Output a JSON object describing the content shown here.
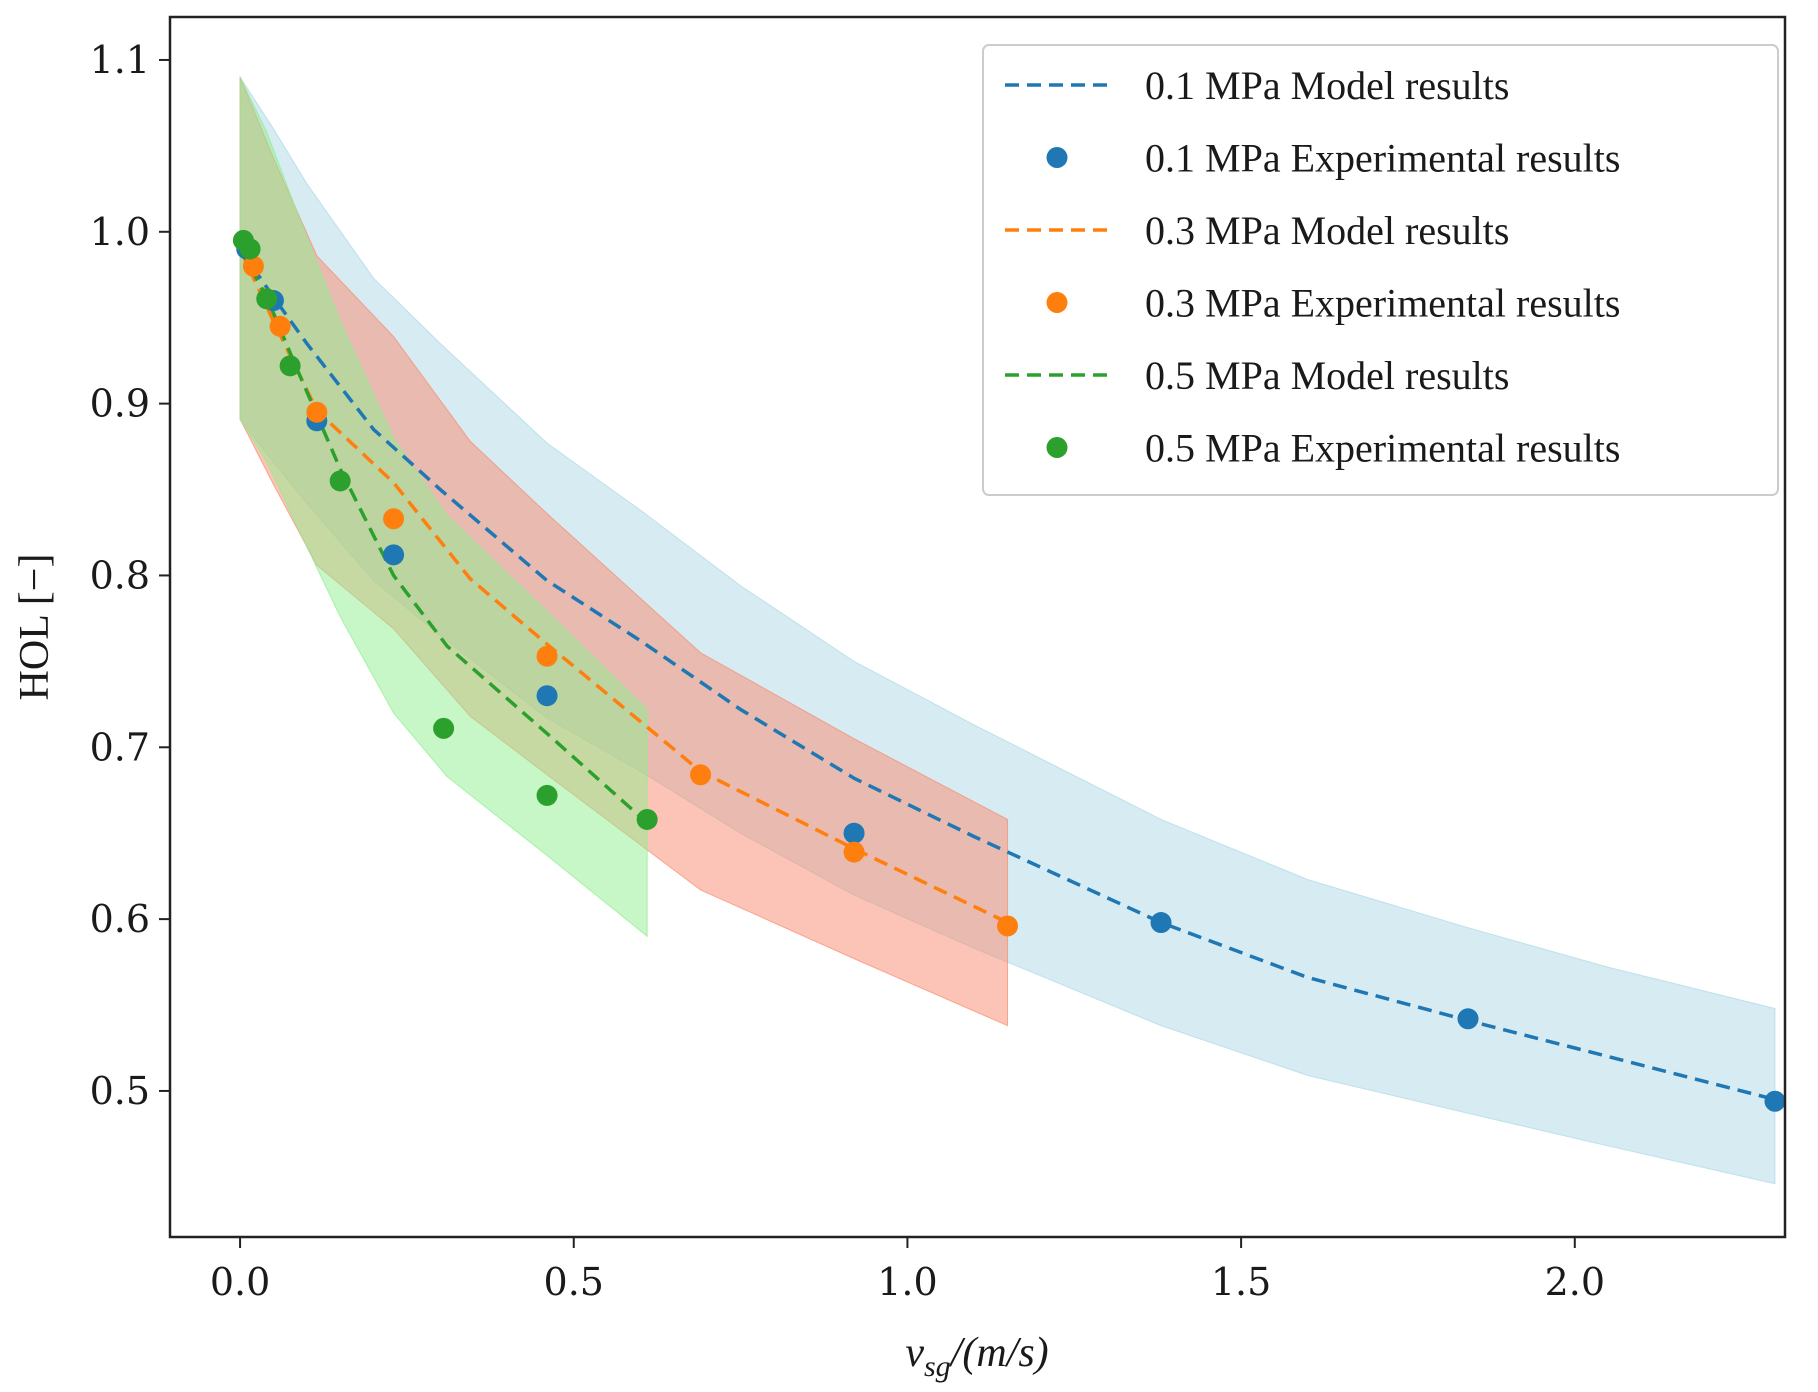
{
  "chart_data": {
    "type": "line",
    "title": "",
    "xlabel": "v_sg/(m/s)",
    "xlabel_parts": {
      "main": "v",
      "sub": "sg",
      "rest": "/(m/s)"
    },
    "ylabel": "HOL [−]",
    "xlim": [
      -0.105,
      2.315
    ],
    "ylim": [
      0.415,
      1.125
    ],
    "xticks": [
      0.0,
      0.5,
      1.0,
      1.5,
      2.0
    ],
    "xtick_labels": [
      "0.0",
      "0.5",
      "1.0",
      "1.5",
      "2.0"
    ],
    "yticks": [
      0.5,
      0.6,
      0.7,
      0.8,
      0.9,
      1.0,
      1.1
    ],
    "ytick_labels": [
      "0.5",
      "0.6",
      "0.7",
      "0.8",
      "0.9",
      "1.0",
      "1.1"
    ],
    "legend_position": "top-right",
    "series": [
      {
        "name": "0.1 MPa",
        "line_color": "#1f77b4",
        "band_color": "#add8e6",
        "model_label": "0.1 MPa Model results",
        "exp_label": "0.1 MPa Experimental results",
        "model": {
          "x": [
            0.0,
            0.05,
            0.1,
            0.2,
            0.3,
            0.46,
            0.6,
            0.75,
            0.92,
            1.1,
            1.38,
            1.6,
            1.84,
            2.05,
            2.3
          ],
          "y": [
            0.99,
            0.962,
            0.935,
            0.885,
            0.85,
            0.797,
            0.762,
            0.722,
            0.682,
            0.648,
            0.598,
            0.566,
            0.541,
            0.52,
            0.495
          ]
        },
        "band_upper": [
          1.09,
          1.06,
          1.028,
          0.973,
          0.935,
          0.877,
          0.838,
          0.794,
          0.75,
          0.713,
          0.658,
          0.623,
          0.595,
          0.572,
          0.548
        ],
        "band_lower": [
          0.891,
          0.866,
          0.842,
          0.797,
          0.765,
          0.717,
          0.686,
          0.65,
          0.614,
          0.583,
          0.538,
          0.509,
          0.487,
          0.468,
          0.446
        ],
        "experimental": {
          "x": [
            0.01,
            0.05,
            0.115,
            0.23,
            0.46,
            0.92,
            1.38,
            1.84,
            2.3
          ],
          "y": [
            0.99,
            0.96,
            0.89,
            0.812,
            0.73,
            0.65,
            0.598,
            0.542,
            0.494
          ]
        }
      },
      {
        "name": "0.3 MPa",
        "line_color": "#ff7f0e",
        "band_color": "#fa8a6e",
        "model_label": "0.3 MPa Model results",
        "exp_label": "0.3 MPa Experimental results",
        "model": {
          "x": [
            0.0,
            0.05,
            0.115,
            0.23,
            0.345,
            0.46,
            0.69,
            0.92,
            1.15
          ],
          "y": [
            0.99,
            0.948,
            0.896,
            0.854,
            0.798,
            0.76,
            0.686,
            0.641,
            0.598
          ]
        },
        "band_upper": [
          1.09,
          1.043,
          0.986,
          0.939,
          0.878,
          0.836,
          0.755,
          0.705,
          0.658
        ],
        "band_lower": [
          0.891,
          0.853,
          0.806,
          0.769,
          0.718,
          0.684,
          0.617,
          0.577,
          0.538
        ],
        "experimental": {
          "x": [
            0.02,
            0.06,
            0.115,
            0.23,
            0.46,
            0.69,
            0.92,
            1.15
          ],
          "y": [
            0.98,
            0.945,
            0.895,
            0.833,
            0.753,
            0.684,
            0.639,
            0.596
          ]
        }
      },
      {
        "name": "0.5 MPa",
        "line_color": "#2ca02c",
        "band_color": "#90ee90",
        "model_label": "0.5 MPa Model results",
        "exp_label": "0.5 MPa Experimental results",
        "model": {
          "x": [
            0.0,
            0.04,
            0.08,
            0.15,
            0.23,
            0.31,
            0.46,
            0.61
          ],
          "y": [
            0.99,
            0.962,
            0.925,
            0.862,
            0.8,
            0.759,
            0.708,
            0.656
          ]
        },
        "band_upper": [
          1.09,
          1.058,
          1.017,
          0.948,
          0.88,
          0.835,
          0.779,
          0.722
        ],
        "band_lower": [
          0.891,
          0.866,
          0.833,
          0.776,
          0.72,
          0.683,
          0.637,
          0.59
        ],
        "experimental": {
          "x": [
            0.005,
            0.015,
            0.04,
            0.075,
            0.15,
            0.305,
            0.46,
            0.61
          ],
          "y": [
            0.995,
            0.99,
            0.961,
            0.922,
            0.855,
            0.711,
            0.672,
            0.658
          ]
        }
      }
    ]
  }
}
